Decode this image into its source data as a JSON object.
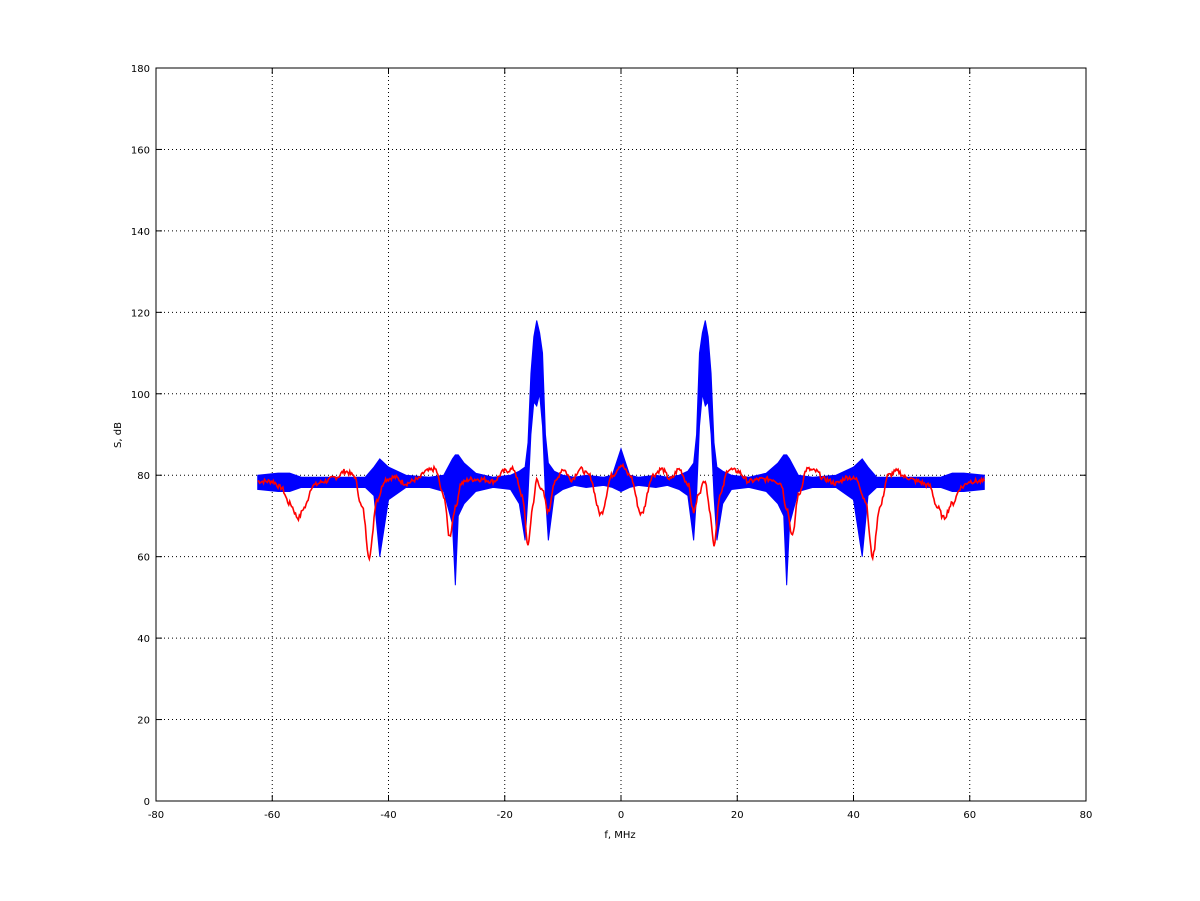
{
  "chart_data": {
    "type": "line",
    "title": "",
    "xlabel": "f, MHz",
    "ylabel": "S, dB",
    "xlim": [
      -80,
      80
    ],
    "ylim": [
      0,
      180
    ],
    "xticks": [
      -80,
      -60,
      -40,
      -20,
      0,
      20,
      40,
      60,
      80
    ],
    "yticks": [
      0,
      20,
      40,
      60,
      80,
      100,
      120,
      140,
      160,
      180
    ],
    "grid": true,
    "legend": "none",
    "symmetric_about_zero": true,
    "series": [
      {
        "color": "#0000ff",
        "style": "dense band (min/max envelope)",
        "points_lo_hi": [
          [
            0,
            76,
            86.5
          ],
          [
            1.5,
            77,
            80
          ],
          [
            3,
            77.5,
            79.5
          ],
          [
            6,
            77,
            80
          ],
          [
            8,
            77.5,
            79.5
          ],
          [
            10,
            76.5,
            80
          ],
          [
            11.5,
            75,
            81
          ],
          [
            12.5,
            64,
            83
          ],
          [
            13,
            75,
            90
          ],
          [
            13.5,
            92,
            110
          ],
          [
            14,
            100,
            115
          ],
          [
            14.5,
            97,
            118
          ],
          [
            15,
            98,
            114
          ],
          [
            15.5,
            90,
            105
          ],
          [
            16,
            75,
            88
          ],
          [
            16.5,
            64,
            82
          ],
          [
            17.5,
            73,
            81
          ],
          [
            19,
            76.5,
            80
          ],
          [
            22,
            77,
            79.5
          ],
          [
            25,
            76,
            80.5
          ],
          [
            27,
            73,
            83
          ],
          [
            28,
            70,
            85
          ],
          [
            28.5,
            53,
            85
          ],
          [
            29,
            68,
            84
          ],
          [
            30.5,
            76,
            80
          ],
          [
            33,
            77,
            79.5
          ],
          [
            37,
            77,
            80
          ],
          [
            40,
            74,
            82
          ],
          [
            41.5,
            60,
            84
          ],
          [
            42.5,
            75,
            82
          ],
          [
            44,
            77,
            79.5
          ],
          [
            50,
            77,
            79.5
          ],
          [
            55,
            77,
            79.5
          ],
          [
            57,
            76,
            80.5
          ],
          [
            59,
            76,
            80.5
          ],
          [
            62.5,
            76.5,
            80
          ]
        ]
      },
      {
        "color": "#ff0000",
        "style": "line",
        "points": [
          [
            0,
            82.5
          ],
          [
            1.5,
            80
          ],
          [
            3.5,
            70.5
          ],
          [
            5.5,
            80
          ],
          [
            7,
            81.5
          ],
          [
            8.5,
            79
          ],
          [
            10,
            81.5
          ],
          [
            11.5,
            78
          ],
          [
            12.5,
            71
          ],
          [
            13.5,
            76
          ],
          [
            14.5,
            79
          ],
          [
            15.2,
            72
          ],
          [
            16,
            63
          ],
          [
            17,
            75
          ],
          [
            18.5,
            81.5
          ],
          [
            20,
            81
          ],
          [
            22,
            78.5
          ],
          [
            24,
            79
          ],
          [
            26,
            79
          ],
          [
            27.5,
            78
          ],
          [
            28.5,
            72
          ],
          [
            29.5,
            65
          ],
          [
            30.5,
            75
          ],
          [
            32,
            81.5
          ],
          [
            33.5,
            81
          ],
          [
            35,
            79
          ],
          [
            37,
            78
          ],
          [
            39,
            79.5
          ],
          [
            40.5,
            79
          ],
          [
            42,
            74
          ],
          [
            43.3,
            60
          ],
          [
            44.5,
            72
          ],
          [
            46,
            80
          ],
          [
            47.5,
            81
          ],
          [
            49,
            79.5
          ],
          [
            51,
            78.5
          ],
          [
            53,
            77.5
          ],
          [
            54.5,
            72
          ],
          [
            55.5,
            69.5
          ],
          [
            57,
            73
          ],
          [
            58.5,
            77
          ],
          [
            60,
            78.5
          ],
          [
            62.5,
            78.5
          ]
        ]
      }
    ]
  }
}
